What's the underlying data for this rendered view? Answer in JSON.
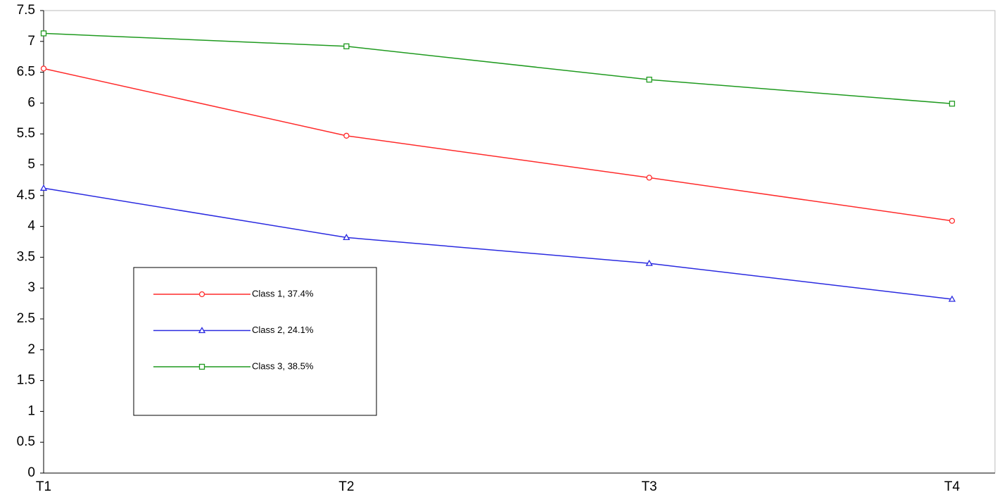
{
  "chart_data": {
    "type": "line",
    "categories": [
      "T1",
      "T2",
      "T3",
      "T4"
    ],
    "series": [
      {
        "name": "Class 1, 37.4%",
        "color": "#ff2a2a",
        "marker": "circle",
        "values": [
          6.56,
          5.47,
          4.79,
          4.09
        ]
      },
      {
        "name": "Class 2, 24.1%",
        "color": "#2a2ae0",
        "marker": "triangle",
        "values": [
          4.62,
          3.82,
          3.4,
          2.82
        ]
      },
      {
        "name": "Class 3, 38.5%",
        "color": "#1f9a1f",
        "marker": "square",
        "values": [
          7.13,
          6.92,
          6.38,
          5.99
        ]
      }
    ],
    "ylim": [
      0,
      7.5
    ],
    "yticks": [
      0,
      0.5,
      1,
      1.5,
      2,
      2.5,
      3,
      3.5,
      4,
      4.5,
      5,
      5.5,
      6,
      6.5,
      7,
      7.5
    ],
    "grid": false,
    "legend": "lower-left"
  }
}
